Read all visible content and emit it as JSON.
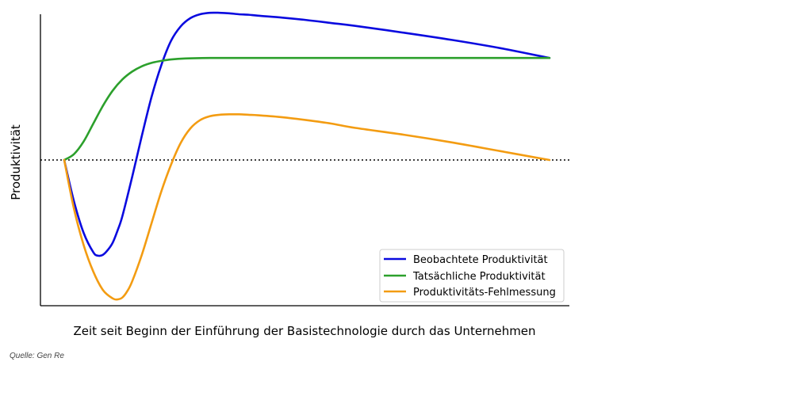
{
  "chart_data": {
    "type": "line",
    "title": "",
    "xlabel": "Zeit seit Beginn der Einführung der Basistechnologie durch das Unternehmen",
    "ylabel": "Produktivität",
    "xlim": [
      0,
      10.9
    ],
    "ylim": [
      -3.0,
      3.0
    ],
    "grid": false,
    "legend_position": "lower-right",
    "baseline": {
      "y": 0,
      "style": "dotted"
    },
    "series": [
      {
        "name": "Beobachtete Produktivität",
        "color": "#0a0adf",
        "x": [
          0,
          0.2,
          0.4,
          0.6,
          0.7,
          0.8,
          0.9,
          1.0,
          1.1,
          1.2,
          1.4,
          1.6,
          1.8,
          2.0,
          2.2,
          2.4,
          2.6,
          2.8,
          3.0,
          3.2,
          3.4,
          3.6,
          3.8,
          4.0,
          4.5,
          5.0,
          5.5,
          6.0,
          7.0,
          8.0,
          9.0,
          10.0
        ],
        "y": [
          0,
          -0.85,
          -1.5,
          -1.9,
          -1.97,
          -1.95,
          -1.85,
          -1.7,
          -1.45,
          -1.15,
          -0.35,
          0.5,
          1.3,
          1.95,
          2.45,
          2.75,
          2.92,
          3.0,
          3.03,
          3.03,
          3.02,
          3.0,
          2.99,
          2.97,
          2.93,
          2.88,
          2.82,
          2.76,
          2.62,
          2.47,
          2.3,
          2.1
        ]
      },
      {
        "name": "Tatsächliche Produktivität",
        "color": "#2ca02c",
        "x": [
          0,
          0.2,
          0.4,
          0.6,
          0.8,
          1.0,
          1.2,
          1.4,
          1.6,
          1.8,
          2.0,
          2.2,
          2.5,
          3.0,
          3.5,
          4.0,
          5.0,
          6.0,
          7.0,
          8.0,
          9.0,
          10.0
        ],
        "y": [
          0,
          0.12,
          0.38,
          0.75,
          1.12,
          1.43,
          1.66,
          1.82,
          1.93,
          2.0,
          2.04,
          2.07,
          2.09,
          2.1,
          2.1,
          2.1,
          2.1,
          2.1,
          2.1,
          2.1,
          2.1,
          2.1
        ]
      },
      {
        "name": "Produktivitäts-Fehlmessung",
        "color": "#f39c12",
        "x": [
          0,
          0.2,
          0.4,
          0.6,
          0.8,
          1.0,
          1.1,
          1.2,
          1.3,
          1.4,
          1.6,
          1.8,
          2.0,
          2.2,
          2.4,
          2.6,
          2.8,
          3.0,
          3.2,
          3.4,
          3.6,
          3.8,
          4.0,
          4.5,
          5.0,
          5.5,
          6.0,
          7.0,
          8.0,
          9.0,
          10.0
        ],
        "y": [
          0,
          -1.0,
          -1.75,
          -2.3,
          -2.68,
          -2.85,
          -2.87,
          -2.83,
          -2.7,
          -2.5,
          -1.95,
          -1.3,
          -0.65,
          -0.1,
          0.35,
          0.65,
          0.82,
          0.9,
          0.93,
          0.94,
          0.94,
          0.93,
          0.92,
          0.88,
          0.82,
          0.75,
          0.66,
          0.52,
          0.36,
          0.18,
          0.0
        ]
      }
    ]
  },
  "source": "Quelle: Gen Re"
}
